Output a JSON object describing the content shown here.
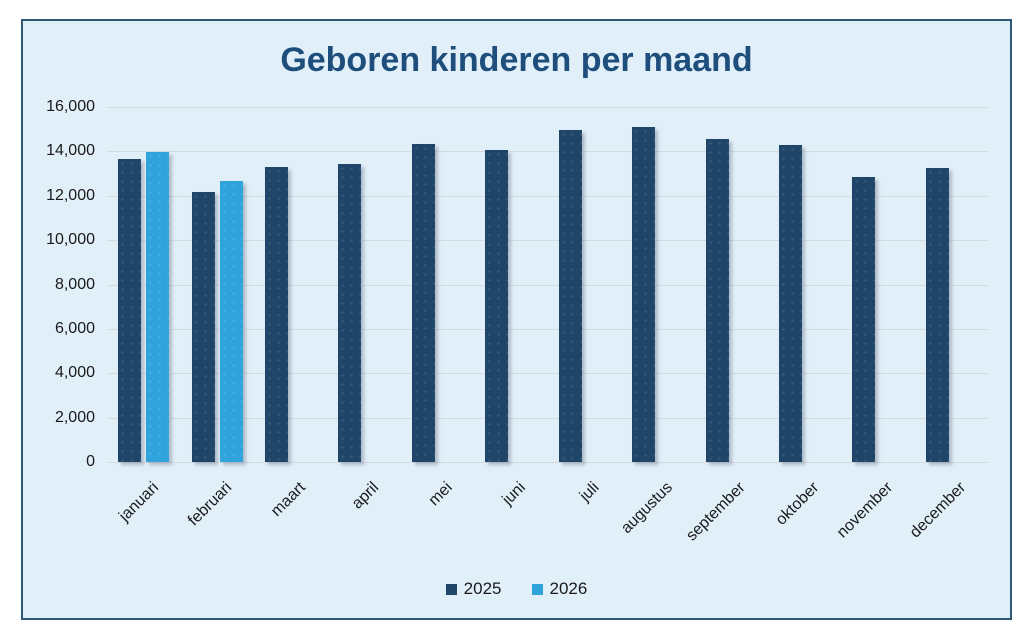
{
  "theme": {
    "background": "#e1eff9",
    "border": "#2e5878",
    "title_color": "#1e4e7c",
    "gridline": "#d6dade",
    "text": "#1a1a1a"
  },
  "chart_data": {
    "type": "bar",
    "title": "Geboren kinderen per maand",
    "categories": [
      "januari",
      "februari",
      "maart",
      "april",
      "mei",
      "juni",
      "juli",
      "augustus",
      "september",
      "oktober",
      "november",
      "december"
    ],
    "series": [
      {
        "name": "2025",
        "color": "#1f4568",
        "values": [
          13650,
          12150,
          13300,
          13450,
          14350,
          14050,
          14950,
          15100,
          14550,
          14300,
          12850,
          13250
        ]
      },
      {
        "name": "2026",
        "color": "#2ea3dc",
        "values": [
          13950,
          12650,
          null,
          null,
          null,
          null,
          null,
          null,
          null,
          null,
          null,
          null
        ]
      }
    ],
    "xlabel": "",
    "ylabel": "",
    "ylim": [
      0,
      16000
    ],
    "ytick_interval": 2000,
    "ytick_labels": [
      "0",
      "2,000",
      "4,000",
      "6,000",
      "8,000",
      "10,000",
      "12,000",
      "14,000",
      "16,000"
    ],
    "grid": true,
    "legend_position": "bottom",
    "x_label_rotation": 45
  }
}
